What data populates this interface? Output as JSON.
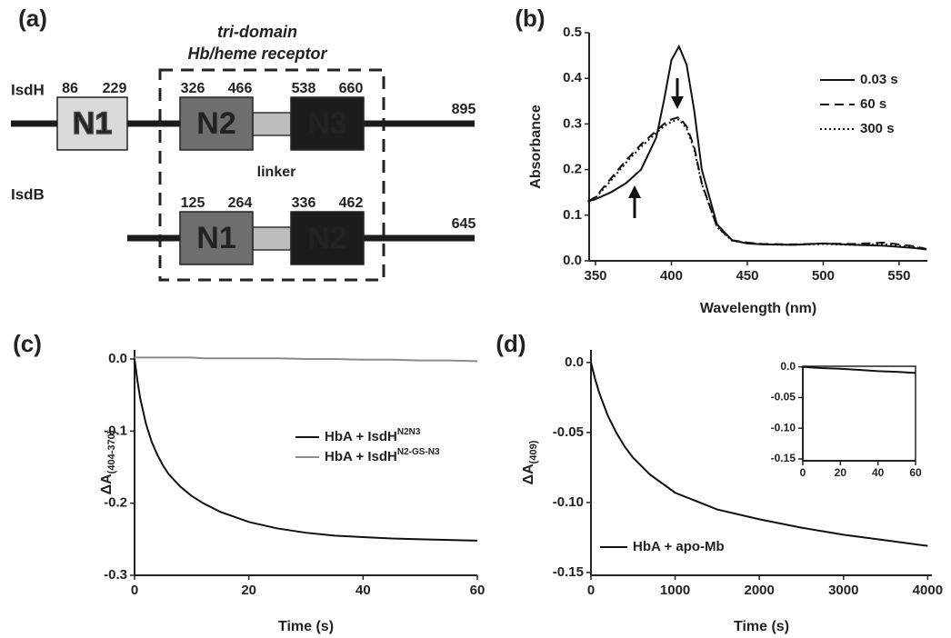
{
  "diagram": {
    "label": "(a)",
    "box_title": [
      "tri-domain",
      "Hb/heme receptor"
    ],
    "linker_label": "linker",
    "proteins": [
      {
        "name": "IsdH",
        "length": 895,
        "domains": [
          {
            "label": "N1",
            "start": 86,
            "end": 229,
            "color": "#d9d9d9"
          },
          {
            "label": "N2",
            "start": 326,
            "end": 466,
            "color": "#6e6e6e"
          },
          {
            "label": "N3",
            "start": 538,
            "end": 660,
            "color": "#1c1c1c"
          }
        ]
      },
      {
        "name": "IsdB",
        "length": 645,
        "domains": [
          {
            "label": "N1",
            "start": 125,
            "end": 264,
            "color": "#6e6e6e"
          },
          {
            "label": "N2",
            "start": 336,
            "end": 462,
            "color": "#1c1c1c"
          }
        ]
      }
    ]
  },
  "chart_data": [
    {
      "type": "line",
      "label": "(b)",
      "xlabel": "Wavelength (nm)",
      "ylabel": "Absorbance",
      "xlim": [
        345.8,
        568.6
      ],
      "ylim": [
        0,
        0.5
      ],
      "xticks": [
        350,
        400,
        450,
        500,
        550
      ],
      "yticks": [
        {
          "value": 0,
          "label": "0.0"
        },
        0.1,
        0.2,
        0.3,
        0.4,
        0.5
      ],
      "legend": "upper right",
      "x": [
        345,
        350,
        360,
        370,
        380,
        390,
        395,
        400,
        405,
        410,
        415,
        420,
        430,
        440,
        450,
        460,
        480,
        500,
        520,
        540,
        560,
        568
      ],
      "series": [
        {
          "name": "0.03 s",
          "color": "#111111",
          "dash": "solid",
          "values": [
            0.13,
            0.135,
            0.15,
            0.17,
            0.2,
            0.27,
            0.35,
            0.44,
            0.47,
            0.43,
            0.33,
            0.2,
            0.08,
            0.045,
            0.038,
            0.036,
            0.035,
            0.038,
            0.035,
            0.033,
            0.028,
            0.025
          ]
        },
        {
          "name": "60 s",
          "color": "#111111",
          "dash": "dashed",
          "values": [
            0.13,
            0.14,
            0.18,
            0.22,
            0.255,
            0.285,
            0.3,
            0.31,
            0.315,
            0.295,
            0.25,
            0.17,
            0.075,
            0.045,
            0.04,
            0.037,
            0.036,
            0.038,
            0.037,
            0.04,
            0.032,
            0.026
          ]
        },
        {
          "name": "300 s",
          "color": "#111111",
          "dash": "dotted",
          "values": [
            0.13,
            0.138,
            0.175,
            0.215,
            0.25,
            0.28,
            0.295,
            0.305,
            0.31,
            0.29,
            0.245,
            0.168,
            0.074,
            0.044,
            0.039,
            0.036,
            0.035,
            0.037,
            0.035,
            0.036,
            0.03,
            0.025
          ]
        }
      ]
    },
    {
      "type": "line",
      "label": "(c)",
      "xlabel": "Time (s)",
      "ylabel": "ΔA",
      "ylabel_sub": "(404-370)",
      "xlim": [
        0,
        60
      ],
      "ylim": [
        -0.3,
        0.0126
      ],
      "xticks": [
        0,
        20,
        40,
        60
      ],
      "yticks": [
        {
          "value": 0,
          "label": "0.0"
        },
        -0.1,
        -0.2,
        -0.3
      ],
      "legend": "center right",
      "x": [
        0,
        0.5,
        1,
        2,
        3,
        4,
        5,
        6,
        8,
        10,
        12,
        15,
        20,
        25,
        30,
        35,
        40,
        45,
        50,
        55,
        60
      ],
      "series": [
        {
          "name": "HbA + IsdH",
          "superscript": "N2N3",
          "color": "#111111",
          "dash": "solid",
          "values": [
            0,
            -0.03,
            -0.055,
            -0.09,
            -0.115,
            -0.133,
            -0.148,
            -0.16,
            -0.177,
            -0.19,
            -0.2,
            -0.212,
            -0.226,
            -0.235,
            -0.241,
            -0.245,
            -0.247,
            -0.249,
            -0.25,
            -0.251,
            -0.252
          ]
        },
        {
          "name": "HbA + IsdH",
          "superscript": "N2-GS-N3",
          "color": "#8c8c8c",
          "dash": "solid",
          "values": [
            0.002,
            0.002,
            0.002,
            0.002,
            0.002,
            0.002,
            0.002,
            0.002,
            0.002,
            0.002,
            0.001,
            0.001,
            0.001,
            0.001,
            0,
            0,
            -0.001,
            -0.001,
            -0.002,
            -0.002,
            -0.003
          ]
        }
      ]
    },
    {
      "type": "line",
      "label": "(d)",
      "xlabel": "Time (s)",
      "ylabel": "ΔA",
      "ylabel_sub": "(409)",
      "xlim": [
        0,
        4050
      ],
      "ylim": [
        -0.152,
        0.009
      ],
      "xticks": [
        0,
        1000,
        2000,
        3000,
        4000
      ],
      "yticks": [
        {
          "value": 0,
          "label": "0.0"
        },
        -0.05,
        {
          "value": -0.1,
          "label": "-0.10"
        },
        -0.15
      ],
      "legend": "lower left",
      "x": [
        0,
        50,
        100,
        200,
        300,
        400,
        500,
        700,
        1000,
        1500,
        2000,
        2500,
        3000,
        3500,
        4000
      ],
      "series": [
        {
          "name": "HbA + apo-Mb",
          "color": "#111111",
          "dash": "solid",
          "values": [
            0,
            -0.012,
            -0.022,
            -0.038,
            -0.05,
            -0.06,
            -0.068,
            -0.08,
            -0.093,
            -0.105,
            -0.112,
            -0.118,
            -0.123,
            -0.127,
            -0.131
          ]
        }
      ],
      "inset": {
        "type": "line",
        "xlim": [
          0,
          60
        ],
        "ylim": [
          -0.153,
          0.001
        ],
        "xticks": [
          0,
          20,
          40,
          60
        ],
        "yticks": [
          {
            "value": 0,
            "label": "0.0"
          },
          -0.05,
          {
            "value": -0.1,
            "label": "-0.10"
          },
          -0.15
        ],
        "x": [
          0,
          10,
          20,
          30,
          40,
          50,
          60
        ],
        "series": [
          {
            "color": "#111111",
            "dash": "solid",
            "values": [
              0,
              -0.002,
              -0.003,
              -0.005,
              -0.007,
              -0.008,
              -0.01
            ]
          }
        ]
      }
    }
  ]
}
